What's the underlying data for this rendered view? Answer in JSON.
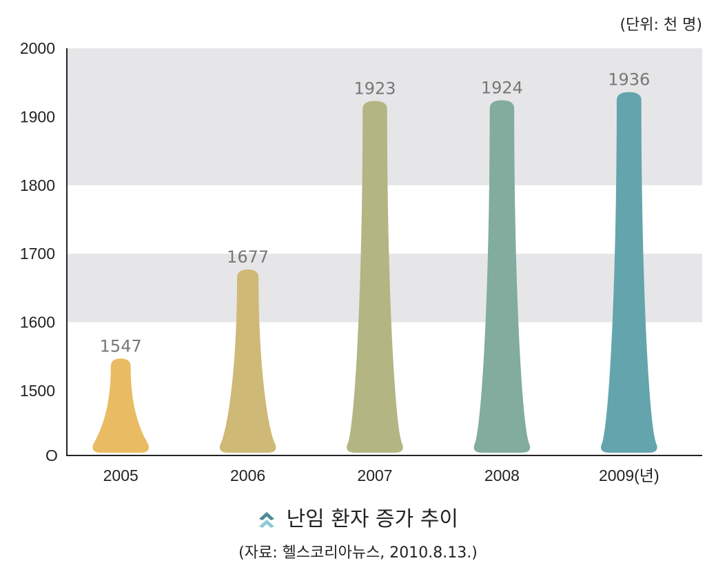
{
  "unit_label": "(단위: 천 명)",
  "chart_title": "난임 환자 증가 추이",
  "source": "(자료: 헬스코리아뉴스, 2010.8.13.)",
  "icon": "double-chevron-up-icon",
  "chart_data": {
    "type": "bar",
    "categories": [
      "2005",
      "2006",
      "2007",
      "2008",
      "2009(년)"
    ],
    "values": [
      1547,
      1677,
      1923,
      1924,
      1936
    ],
    "value_labels": [
      "1547",
      "1677",
      "1923",
      "1924",
      "1936"
    ],
    "colors": [
      "#E9BC63",
      "#CFB977",
      "#B3B583",
      "#82AC9D",
      "#64A4AD"
    ],
    "y_ticks": [
      "1500",
      "1600",
      "1700",
      "1800",
      "1900",
      "2000"
    ],
    "y_origin_label": "O",
    "ylim": [
      1500,
      2000
    ],
    "axis_break": true,
    "grid": "alternating-bands",
    "band_color": "#E6E6E8"
  }
}
